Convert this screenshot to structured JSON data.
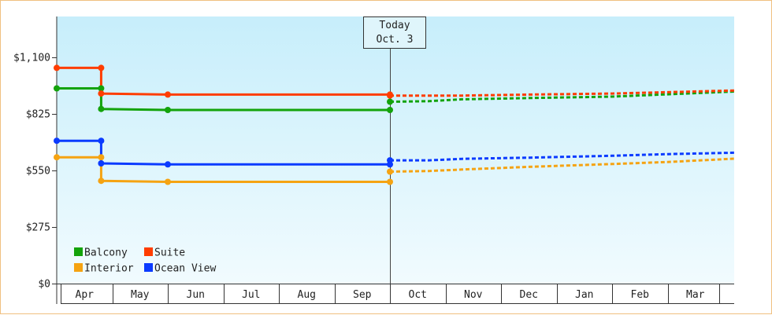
{
  "chart_data": {
    "type": "line",
    "step": true,
    "title": "",
    "xlabel": "",
    "ylabel": "",
    "currency_prefix": "$",
    "ylim": [
      0,
      1300
    ],
    "yticks": [
      0,
      275,
      550,
      825,
      1100
    ],
    "ytick_labels": [
      "$0",
      "$275",
      "$550",
      "$825",
      "$1,100"
    ],
    "months": [
      "Apr",
      "May",
      "Jun",
      "Jul",
      "Aug",
      "Sep",
      "Oct",
      "Nov",
      "Dec",
      "Jan",
      "Feb",
      "Mar"
    ],
    "today": {
      "label": "Today",
      "date": "Oct. 3",
      "x": 6.0
    },
    "legend_position": "bottom-left",
    "series": [
      {
        "name": "Balcony",
        "color": "#13a30b",
        "history": [
          [
            0.0,
            950
          ],
          [
            0.8,
            950
          ],
          [
            0.8,
            850
          ],
          [
            2.0,
            845
          ],
          [
            6.0,
            845
          ]
        ],
        "markers": [
          [
            0.0,
            950
          ],
          [
            0.8,
            950
          ],
          [
            0.8,
            850
          ],
          [
            2.0,
            845
          ],
          [
            6.0,
            845
          ],
          [
            6.0,
            885
          ]
        ],
        "forecast": [
          [
            6.0,
            885
          ],
          [
            6.7,
            888
          ],
          [
            7.3,
            897
          ],
          [
            8.5,
            903
          ],
          [
            10.0,
            910
          ],
          [
            12.2,
            935
          ]
        ]
      },
      {
        "name": "Suite",
        "color": "#ff3d00",
        "history": [
          [
            0.0,
            1050
          ],
          [
            0.8,
            1050
          ],
          [
            0.8,
            925
          ],
          [
            2.0,
            920
          ],
          [
            6.0,
            920
          ]
        ],
        "markers": [
          [
            0.0,
            1050
          ],
          [
            0.8,
            1050
          ],
          [
            0.8,
            925
          ],
          [
            2.0,
            920
          ],
          [
            6.0,
            920
          ],
          [
            6.0,
            915
          ]
        ],
        "forecast": [
          [
            6.0,
            915
          ],
          [
            7.3,
            915
          ],
          [
            8.5,
            920
          ],
          [
            10.0,
            925
          ],
          [
            12.2,
            940
          ]
        ]
      },
      {
        "name": "Interior",
        "color": "#f5a312",
        "history": [
          [
            0.0,
            615
          ],
          [
            0.8,
            615
          ],
          [
            0.8,
            500
          ],
          [
            2.0,
            495
          ],
          [
            6.0,
            495
          ]
        ],
        "markers": [
          [
            0.0,
            615
          ],
          [
            0.8,
            615
          ],
          [
            0.8,
            500
          ],
          [
            2.0,
            495
          ],
          [
            6.0,
            495
          ],
          [
            6.0,
            545
          ]
        ],
        "forecast": [
          [
            6.0,
            545
          ],
          [
            6.7,
            548
          ],
          [
            7.3,
            555
          ],
          [
            8.5,
            568
          ],
          [
            10.0,
            582
          ],
          [
            11.0,
            592
          ],
          [
            12.2,
            608
          ]
        ]
      },
      {
        "name": "Ocean View",
        "color": "#0b3bff",
        "history": [
          [
            0.0,
            695
          ],
          [
            0.8,
            695
          ],
          [
            0.8,
            585
          ],
          [
            2.0,
            580
          ],
          [
            6.0,
            580
          ]
        ],
        "markers": [
          [
            0.0,
            695
          ],
          [
            0.8,
            695
          ],
          [
            0.8,
            585
          ],
          [
            2.0,
            580
          ],
          [
            6.0,
            580
          ],
          [
            6.0,
            600
          ]
        ],
        "forecast": [
          [
            6.0,
            600
          ],
          [
            6.7,
            600
          ],
          [
            7.3,
            607
          ],
          [
            8.5,
            613
          ],
          [
            10.0,
            622
          ],
          [
            11.0,
            630
          ],
          [
            12.2,
            637
          ]
        ]
      }
    ]
  }
}
